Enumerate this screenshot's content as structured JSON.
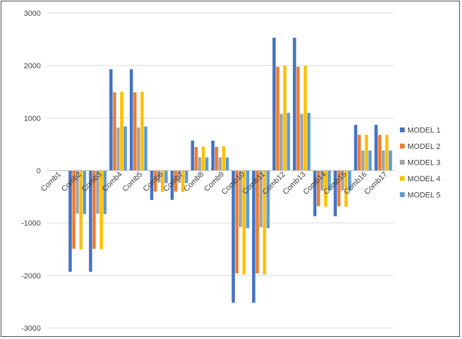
{
  "chart_data": {
    "type": "bar",
    "categories": [
      "Comb1",
      "Comb2",
      "Comb3",
      "Comb4",
      "Comb5",
      "Comb6",
      "Comb7",
      "Comb8",
      "Comb9",
      "Comb10",
      "Comb11",
      "Comb12",
      "Comb13",
      "Comb14",
      "Comb15",
      "Comb16",
      "Comb17"
    ],
    "series": [
      {
        "name": "MODEL 1",
        "color": "#4472C4",
        "values": [
          0,
          -1930,
          -1930,
          1930,
          1930,
          -560,
          -560,
          570,
          570,
          -2520,
          -2520,
          2530,
          2530,
          -870,
          -870,
          870,
          870
        ]
      },
      {
        "name": "MODEL 2",
        "color": "#ED7D31",
        "values": [
          0,
          -1490,
          -1490,
          1490,
          1490,
          -400,
          -400,
          450,
          450,
          -1960,
          -1960,
          1980,
          1980,
          -680,
          -680,
          680,
          680
        ]
      },
      {
        "name": "MODEL 3",
        "color": "#A5A5A5",
        "values": [
          0,
          -820,
          -820,
          820,
          820,
          -230,
          -230,
          250,
          250,
          -1080,
          -1080,
          1080,
          1080,
          -380,
          -380,
          380,
          380
        ]
      },
      {
        "name": "MODEL 4",
        "color": "#FFC000",
        "values": [
          0,
          -1500,
          -1500,
          1500,
          1500,
          -410,
          -410,
          460,
          460,
          -1980,
          -1980,
          2000,
          2000,
          -690,
          -690,
          680,
          680
        ]
      },
      {
        "name": "MODEL 5",
        "color": "#5B9BD5",
        "values": [
          0,
          -830,
          -830,
          840,
          840,
          -240,
          -240,
          250,
          250,
          -1100,
          -1100,
          1100,
          1100,
          -380,
          -380,
          380,
          380
        ]
      }
    ],
    "yticks": [
      "3000",
      "2000",
      "1000",
      "0",
      "-1000",
      "-2000",
      "-3000"
    ],
    "ylim": [
      -3000,
      3000
    ],
    "title": "",
    "xlabel": "",
    "ylabel": "",
    "grid": true,
    "legend": "right"
  }
}
